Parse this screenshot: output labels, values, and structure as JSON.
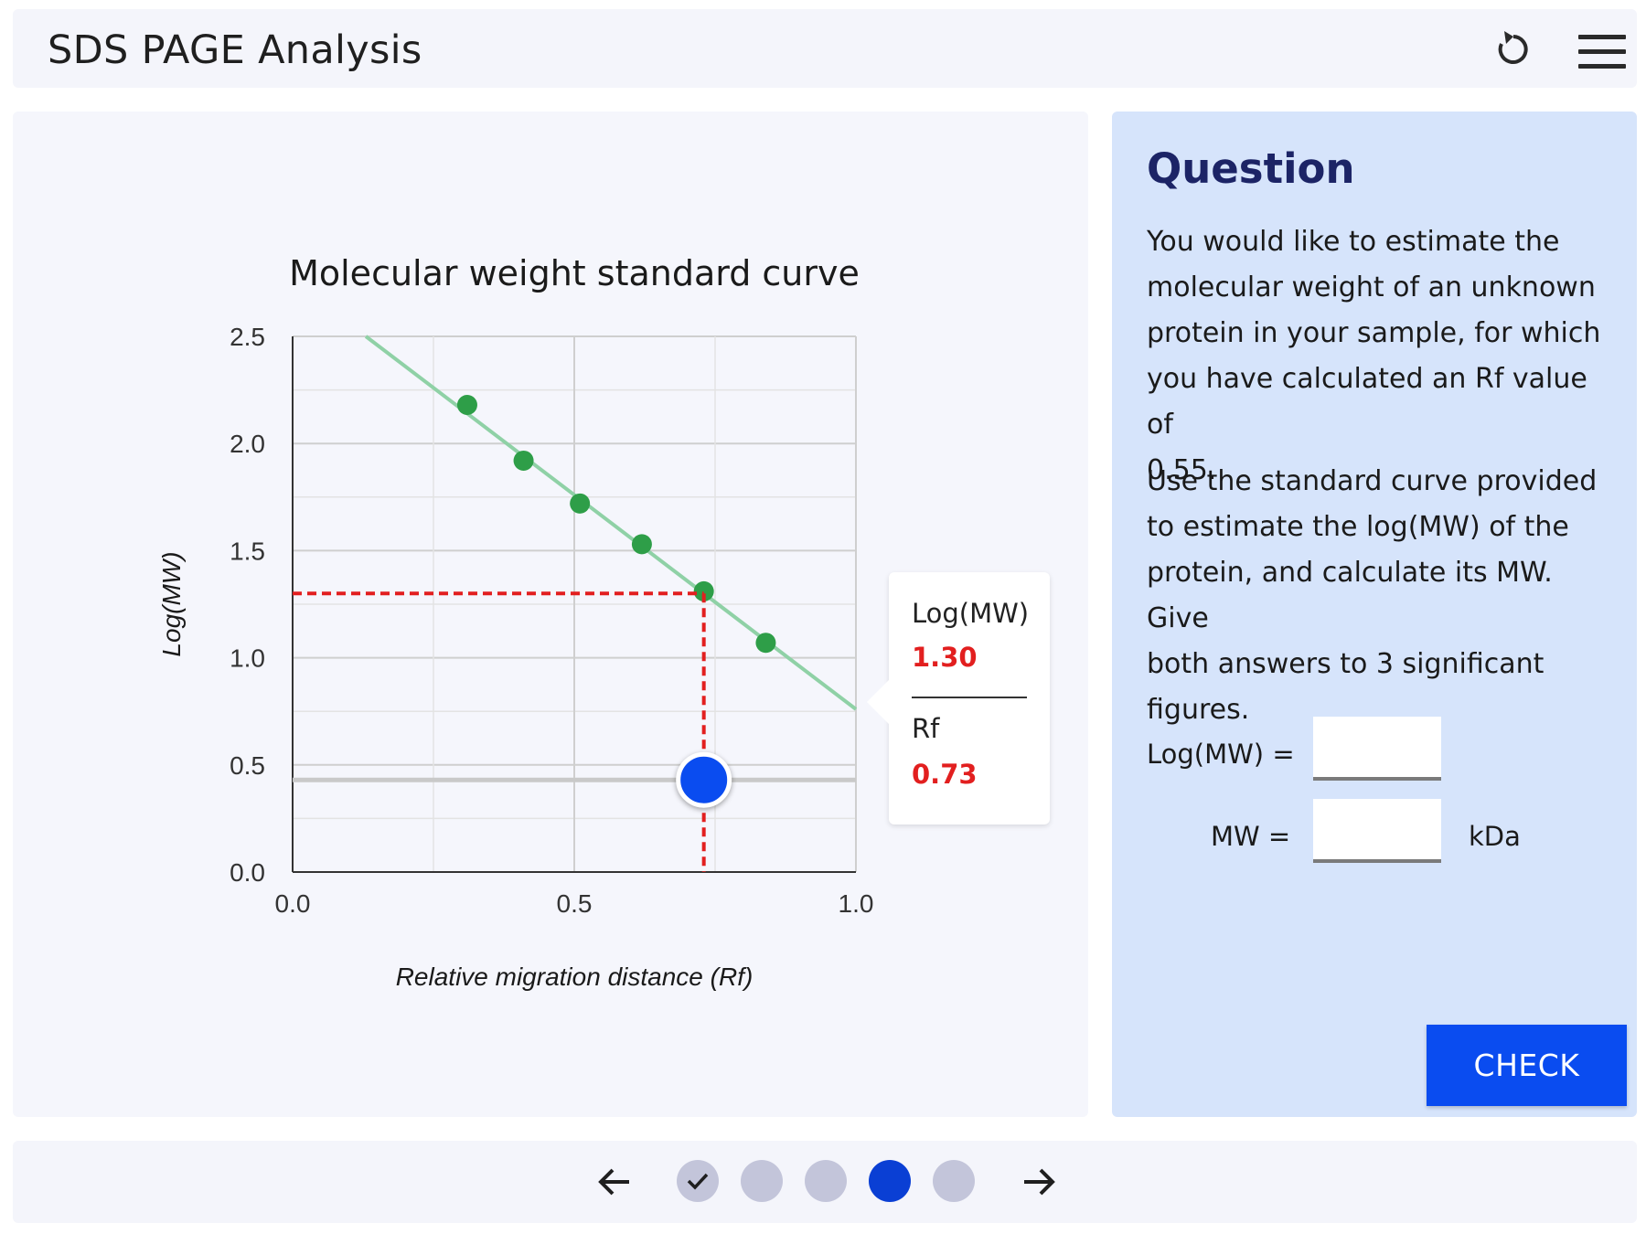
{
  "header": {
    "title": "SDS PAGE Analysis",
    "reset_icon": "reset-icon",
    "menu_icon": "hamburger-menu-icon"
  },
  "chart_data": {
    "type": "scatter",
    "title": "Molecular weight standard curve",
    "xlabel": "Relative migration distance (Rf)",
    "ylabel": "Log(MW)",
    "xlim": [
      0,
      1
    ],
    "ylim": [
      0,
      2.5
    ],
    "xticks": [
      "0.0",
      "0.5",
      "1.0"
    ],
    "yticks": [
      "0.0",
      "0.5",
      "1.0",
      "1.5",
      "2.0",
      "2.5"
    ],
    "grid": true,
    "points": [
      {
        "x": 0.31,
        "y": 2.18
      },
      {
        "x": 0.41,
        "y": 1.92
      },
      {
        "x": 0.51,
        "y": 1.72
      },
      {
        "x": 0.62,
        "y": 1.53
      },
      {
        "x": 0.73,
        "y": 1.31
      },
      {
        "x": 0.84,
        "y": 1.07
      }
    ],
    "fit_line": {
      "x": [
        0.13,
        1.0
      ],
      "y": [
        2.5,
        0.76
      ]
    },
    "point_color": "#2e9e48",
    "line_color": "#8fd1a6",
    "guide_color": "#e21f1f",
    "slider": {
      "rf": 0.73,
      "log_mw": 1.3,
      "color": "#0a4cf0"
    },
    "tooltip": {
      "log_label": "Log(MW)",
      "log_value": "1.30",
      "rf_label": "Rf",
      "rf_value": "0.73"
    }
  },
  "question": {
    "title": "Question",
    "paragraph1_lines": [
      "You would like to estimate the",
      "molecular weight of an unknown",
      "protein in your sample, for which",
      "you have calculated an Rf value of",
      "0.55."
    ],
    "paragraph2_lines": [
      "Use the standard curve provided",
      "to estimate the log(MW) of the",
      "protein, and calculate its MW. Give",
      "both answers to 3 significant",
      "figures."
    ],
    "log_label": "Log(MW) =",
    "log_value": "",
    "mw_label": "MW =",
    "mw_value": "",
    "unit": "kDa",
    "check_label": "CHECK"
  },
  "footer": {
    "prev_icon": "arrow-left-icon",
    "next_icon": "arrow-right-icon",
    "steps": [
      "completed",
      "pending",
      "pending",
      "current",
      "pending"
    ],
    "current_color": "#0a3fd4",
    "pending_color": "#c3c5da"
  }
}
